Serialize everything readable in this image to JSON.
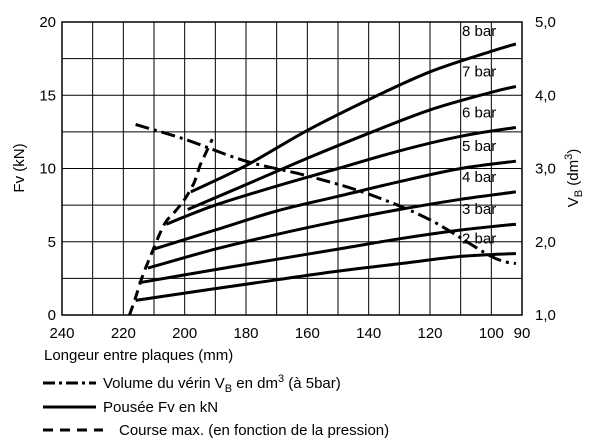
{
  "chart_data": {
    "type": "line",
    "x_axis": {
      "label": "Longeur entre plaques (mm)",
      "range": [
        240,
        90
      ],
      "ticks": [
        240,
        220,
        200,
        180,
        160,
        140,
        120,
        100,
        90
      ]
    },
    "y_left": {
      "label": "Fv (kN)",
      "range": [
        0,
        20
      ],
      "ticks": [
        0,
        5,
        10,
        15,
        20
      ]
    },
    "y_right": {
      "label_main": "V",
      "label_sub": "B",
      "label_unit": " (dm",
      "label_sup": "3",
      "label_end": ")",
      "range": [
        1.0,
        5.0
      ],
      "ticks": [
        "1,0",
        "2,0",
        "3,0",
        "4,0",
        "5,0"
      ],
      "tick_values": [
        1.0,
        2.0,
        3.0,
        4.0,
        5.0
      ]
    },
    "grid": true,
    "series": [
      {
        "name": "8 bar",
        "type": "pousee",
        "points": [
          [
            198,
            8.4
          ],
          [
            180,
            10.2
          ],
          [
            160,
            12.6
          ],
          [
            140,
            14.7
          ],
          [
            120,
            16.6
          ],
          [
            100,
            18.0
          ],
          [
            92,
            18.5
          ]
        ]
      },
      {
        "name": "7 bar",
        "type": "pousee",
        "points": [
          [
            199,
            7.2
          ],
          [
            180,
            8.9
          ],
          [
            160,
            10.7
          ],
          [
            140,
            12.4
          ],
          [
            120,
            14.0
          ],
          [
            100,
            15.2
          ],
          [
            92,
            15.6
          ]
        ]
      },
      {
        "name": "6 bar",
        "type": "pousee",
        "points": [
          [
            206,
            6.2
          ],
          [
            190,
            7.5
          ],
          [
            170,
            8.8
          ],
          [
            150,
            10.0
          ],
          [
            130,
            11.2
          ],
          [
            110,
            12.2
          ],
          [
            92,
            12.8
          ]
        ]
      },
      {
        "name": "5 bar",
        "type": "pousee",
        "points": [
          [
            210,
            4.5
          ],
          [
            190,
            5.8
          ],
          [
            170,
            7.1
          ],
          [
            150,
            8.1
          ],
          [
            130,
            9.1
          ],
          [
            110,
            10.0
          ],
          [
            92,
            10.5
          ]
        ]
      },
      {
        "name": "4 bar",
        "type": "pousee",
        "points": [
          [
            212,
            3.2
          ],
          [
            190,
            4.5
          ],
          [
            170,
            5.5
          ],
          [
            150,
            6.4
          ],
          [
            130,
            7.2
          ],
          [
            110,
            7.9
          ],
          [
            92,
            8.4
          ]
        ]
      },
      {
        "name": "3 bar",
        "type": "pousee",
        "points": [
          [
            215,
            2.2
          ],
          [
            190,
            3.1
          ],
          [
            170,
            3.8
          ],
          [
            150,
            4.5
          ],
          [
            130,
            5.2
          ],
          [
            110,
            5.8
          ],
          [
            92,
            6.2
          ]
        ]
      },
      {
        "name": "2 bar",
        "type": "pousee",
        "points": [
          [
            216,
            1.0
          ],
          [
            190,
            1.8
          ],
          [
            170,
            2.4
          ],
          [
            150,
            3.0
          ],
          [
            130,
            3.5
          ],
          [
            110,
            4.0
          ],
          [
            92,
            4.2
          ]
        ]
      },
      {
        "name": "volume",
        "type": "volume",
        "points": [
          [
            216,
            3.6
          ],
          [
            200,
            3.4
          ],
          [
            180,
            3.1
          ],
          [
            160,
            2.9
          ],
          [
            140,
            2.65
          ],
          [
            120,
            2.3
          ],
          [
            100,
            1.8
          ],
          [
            92,
            1.7
          ]
        ]
      },
      {
        "name": "course",
        "type": "course",
        "points": [
          [
            218,
            0.0
          ],
          [
            216,
            1.2
          ],
          [
            214,
            2.5
          ],
          [
            212,
            3.6
          ],
          [
            210,
            4.6
          ],
          [
            208,
            5.6
          ],
          [
            206,
            6.4
          ],
          [
            203,
            7.1
          ],
          [
            200,
            7.9
          ],
          [
            197,
            9.0
          ],
          [
            195,
            10.2
          ],
          [
            193,
            11.1
          ],
          [
            191,
            12.0
          ]
        ]
      }
    ],
    "legend": {
      "title": "Longeur entre plaques (mm)",
      "items": [
        {
          "style": "dashdot",
          "text_main": "Volume du vérin V",
          "text_sub": "B",
          "text_mid": " en dm",
          "text_sup": "3",
          "text_end": " (à 5bar)"
        },
        {
          "style": "solid",
          "text_main": "Pousée Fv en kN"
        },
        {
          "style": "dashed",
          "text_main": "Course max. (en fonction de la pression)"
        }
      ]
    }
  }
}
